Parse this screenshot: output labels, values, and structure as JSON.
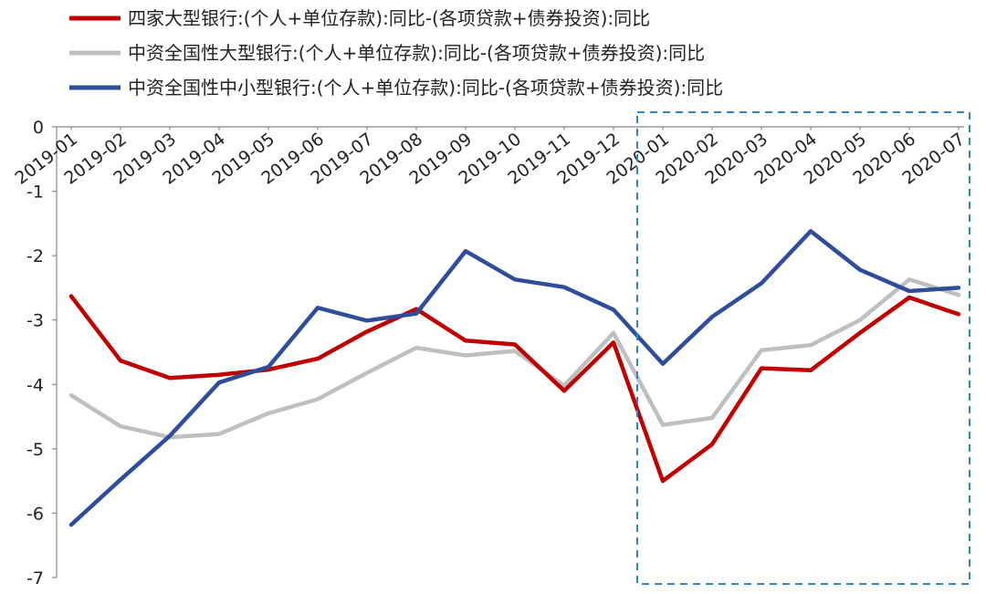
{
  "chart_data": {
    "type": "line",
    "title": "",
    "xlabel": "",
    "ylabel": "",
    "ylim": [
      -7,
      0
    ],
    "yticks": [
      0,
      -1,
      -2,
      -3,
      -4,
      -5,
      -6,
      -7
    ],
    "ytick_labels": [
      "0",
      "-1",
      "-2",
      "-3",
      "-4",
      "-5",
      "-6",
      "-7"
    ],
    "categories": [
      "2019-01",
      "2019-02",
      "2019-03",
      "2019-04",
      "2019-05",
      "2019-06",
      "2019-07",
      "2019-08",
      "2019-09",
      "2019-10",
      "2019-11",
      "2019-12",
      "2020-01",
      "2020-02",
      "2020-03",
      "2020-04",
      "2020-05",
      "2020-06",
      "2020-07"
    ],
    "grid": false,
    "legend_position": "top-left",
    "highlight_range": [
      "2020-01",
      "2020-07"
    ],
    "series": [
      {
        "name": "四家大型银行:(个人+单位存款):同比-(各项贷款+债券投资):同比",
        "color": "#c00000",
        "values": [
          -2.63,
          -3.63,
          -3.9,
          -3.85,
          -3.77,
          -3.6,
          -3.18,
          -2.83,
          -3.32,
          -3.38,
          -4.1,
          -3.35,
          -5.5,
          -4.93,
          -3.75,
          -3.78,
          -3.2,
          -2.65,
          -2.91
        ]
      },
      {
        "name": "中资全国性大型银行:(个人+单位存款):同比-(各项贷款+债券投资):同比",
        "color": "#bfbfbf",
        "values": [
          -4.17,
          -4.65,
          -4.82,
          -4.77,
          -4.45,
          -4.23,
          -3.82,
          -3.43,
          -3.55,
          -3.48,
          -4.02,
          -3.2,
          -4.63,
          -4.52,
          -3.47,
          -3.39,
          -3.0,
          -2.37,
          -2.61
        ]
      },
      {
        "name": "中资全国性中小型银行:(个人+单位存款):同比-(各项贷款+债券投资):同比",
        "color": "#2e4e9a",
        "values": [
          -6.18,
          -5.48,
          -4.8,
          -3.97,
          -3.73,
          -2.81,
          -3.01,
          -2.9,
          -1.93,
          -2.37,
          -2.49,
          -2.84,
          -3.68,
          -2.95,
          -2.43,
          -1.62,
          -2.22,
          -2.55,
          -2.5
        ]
      }
    ]
  }
}
